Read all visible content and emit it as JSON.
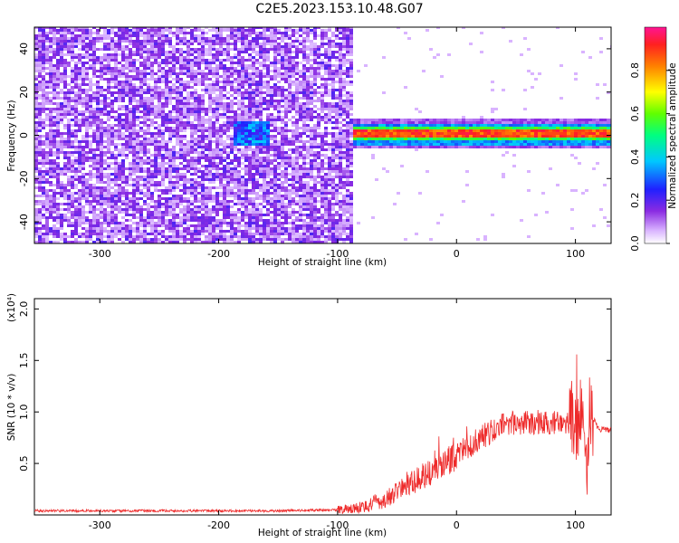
{
  "title": "C2E5.2023.153.10.48.G07",
  "chart_data": [
    {
      "type": "heatmap",
      "xlabel": "Height of straight line (km)",
      "ylabel": "Frequency (Hz)",
      "xlim": [
        -355,
        130
      ],
      "ylim": [
        -50,
        50
      ],
      "xticks": [
        -300,
        -200,
        -100,
        0,
        100
      ],
      "yticks": [
        -40,
        -20,
        0,
        20,
        40
      ],
      "noise_region_x": [
        -355,
        -88
      ],
      "signal_region_x": [
        -88,
        130
      ],
      "signal_center_freq": 0,
      "weak_blob_x": [
        -190,
        -160
      ],
      "colorbar": {
        "label": "Normalized spectral amplitude",
        "range": [
          0,
          1
        ],
        "ticks": [
          "0.0",
          "0.2",
          "0.4",
          "0.6",
          "0.8"
        ],
        "colormap": [
          "#ffffff",
          "#a020f0",
          "#0000ff",
          "#00ffff",
          "#00ff00",
          "#ffff00",
          "#ff0000",
          "#ff00a0"
        ]
      }
    },
    {
      "type": "line",
      "xlabel": "Height of straight line (km)",
      "ylabel": "SNR (10 * v/v)",
      "y_exponent_label": "(x10⁴)",
      "xlim": [
        -355,
        130
      ],
      "ylim": [
        0,
        2.1
      ],
      "xticks": [
        -300,
        -200,
        -100,
        0,
        100
      ],
      "yticks": [
        "0.5",
        "1.0",
        "1.5",
        "2.0"
      ],
      "ytick_values": [
        0.5,
        1.0,
        1.5,
        2.0
      ],
      "line_color": "#ee2a2a",
      "series": [
        {
          "x": [
            -355,
            -300,
            -200,
            -150,
            -100,
            -80,
            -60,
            -40,
            -20,
            0,
            20,
            40,
            60,
            80,
            100,
            105,
            108,
            112,
            120,
            130
          ],
          "y": [
            0.04,
            0.04,
            0.04,
            0.04,
            0.05,
            0.07,
            0.15,
            0.3,
            0.42,
            0.58,
            0.75,
            0.88,
            0.9,
            0.9,
            0.86,
            0.9,
            0.35,
            1.0,
            0.83,
            0.83
          ]
        }
      ]
    }
  ]
}
